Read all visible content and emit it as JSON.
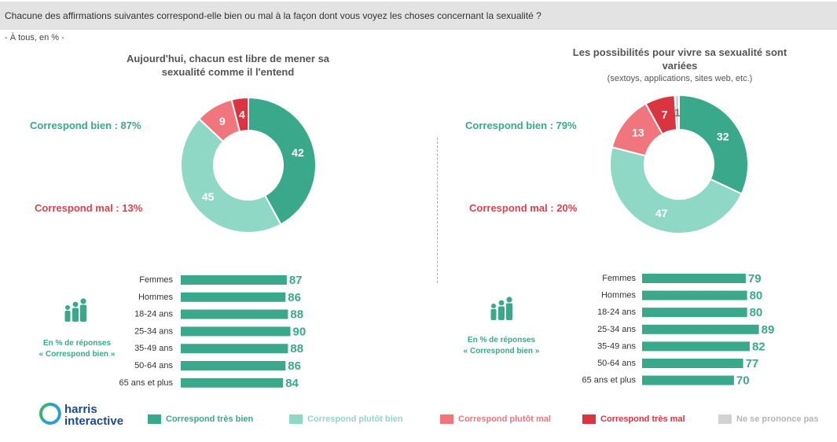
{
  "header": {
    "question": "Chacune des affirmations suivantes correspond-elle bien ou mal à la façon dont vous voyez les choses concernant la sexualité ?",
    "scope": "- À tous, en % -"
  },
  "colors": {
    "tres_bien": "#3aa88a",
    "plutot_bien": "#8fd8c6",
    "plutot_mal": "#f0757d",
    "tres_mal": "#d9343f",
    "ne_se_prononce_pas": "#d2d2d2"
  },
  "legend": [
    {
      "label": "Correspond très bien",
      "color": "#3aa88a",
      "text_color": "#3aa88a"
    },
    {
      "label": "Correspond plutôt bien",
      "color": "#8fd8c6",
      "text_color": "#8fd8c6"
    },
    {
      "label": "Correspond plutôt mal",
      "color": "#f0757d",
      "text_color": "#f0757d"
    },
    {
      "label": "Correspond très mal",
      "color": "#d9343f",
      "text_color": "#d9343f"
    },
    {
      "label": "Ne se prononce pas",
      "color": "#d2d2d2",
      "text_color": "#b5b5b5"
    }
  ],
  "brand": {
    "line1": "harris",
    "line2": "interactive"
  },
  "left": {
    "title": "Aujourd'hui, chacun est libre de mener sa sexualité comme il l'entend",
    "subtitle": "",
    "bien_label": "Correspond bien : 87%",
    "mal_label": "Correspond mal : 13%",
    "note_line1": "En % de réponses",
    "note_line2": "« Correspond bien »"
  },
  "right": {
    "title": "Les possibilités pour vivre sa sexualité sont variées",
    "subtitle": "(sextoys, applications, sites web, etc.)",
    "bien_label": "Correspond bien : 79%",
    "mal_label": "Correspond mal : 20%",
    "note_line1": "En % de réponses",
    "note_line2": "« Correspond bien »"
  },
  "chart_data": [
    {
      "type": "pie",
      "title": "Aujourd'hui, chacun est libre de mener sa sexualité comme il l'entend",
      "donut": true,
      "slices": [
        {
          "label": "Correspond très bien",
          "value": 42
        },
        {
          "label": "Correspond plutôt bien",
          "value": 45
        },
        {
          "label": "Correspond plutôt mal",
          "value": 9
        },
        {
          "label": "Correspond très mal",
          "value": 4
        }
      ]
    },
    {
      "type": "bar",
      "orientation": "horizontal",
      "title": "En % de réponses « Correspond bien »",
      "categories": [
        "Femmes",
        "Hommes",
        "18-24 ans",
        "25-34 ans",
        "35-49 ans",
        "50-64 ans",
        "65 ans et plus"
      ],
      "values": [
        87,
        86,
        88,
        90,
        88,
        86,
        84
      ]
    },
    {
      "type": "pie",
      "title": "Les possibilités pour vivre sa sexualité sont variées",
      "subtitle": "(sextoys, applications, sites web, etc.)",
      "donut": true,
      "slices": [
        {
          "label": "Correspond très bien",
          "value": 32
        },
        {
          "label": "Correspond plutôt bien",
          "value": 47
        },
        {
          "label": "Correspond plutôt mal",
          "value": 13
        },
        {
          "label": "Correspond très mal",
          "value": 7
        },
        {
          "label": "Ne se prononce pas",
          "value": 1
        }
      ]
    },
    {
      "type": "bar",
      "orientation": "horizontal",
      "title": "En % de réponses « Correspond bien »",
      "categories": [
        "Femmes",
        "Hommes",
        "18-24 ans",
        "25-34 ans",
        "35-49 ans",
        "50-64 ans",
        "65 ans et plus"
      ],
      "values": [
        79,
        80,
        80,
        89,
        82,
        77,
        70
      ]
    }
  ]
}
